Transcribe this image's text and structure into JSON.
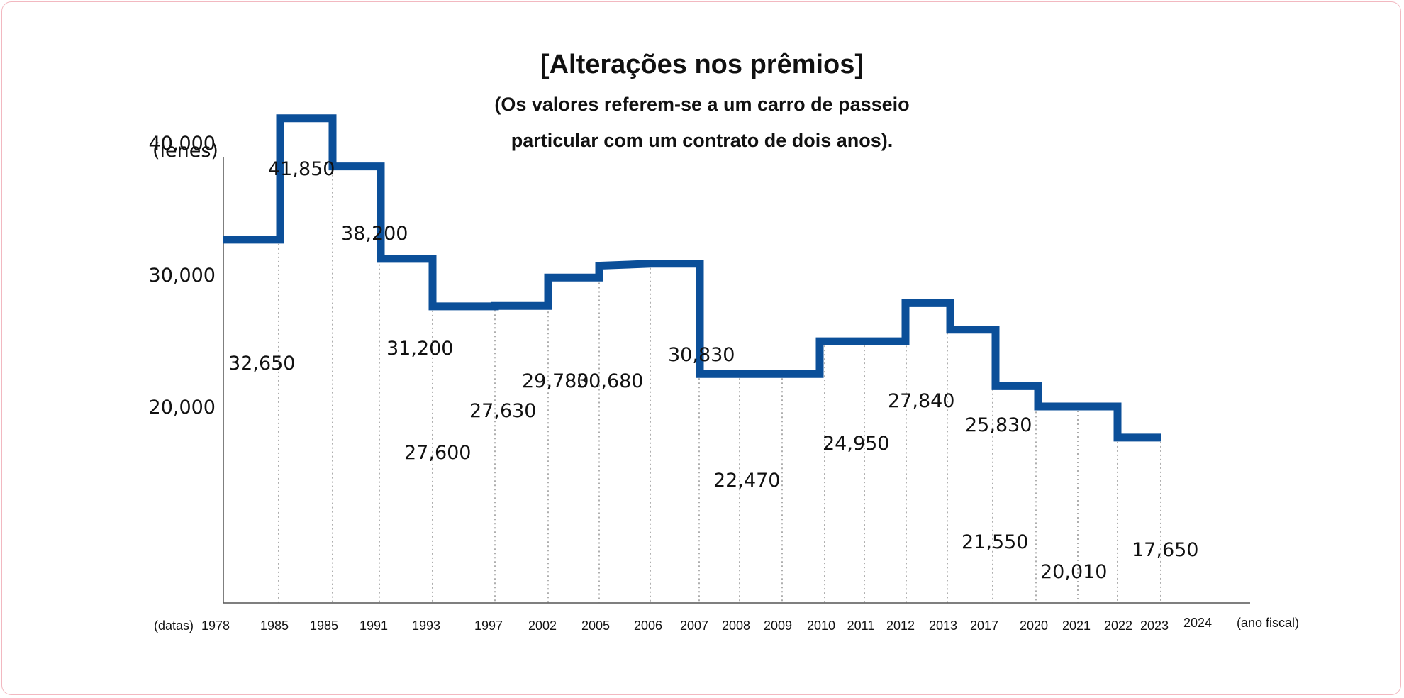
{
  "chart_data": {
    "type": "line",
    "step": true,
    "title": "[Alterações nos prêmios]",
    "subtitle_lines": [
      "(Os valores referem-se a um carro de passeio",
      "particular com um contrato de dois anos)."
    ],
    "ylabel": "(ienes)",
    "xlabel_prefix": "(datas)",
    "xlabel_suffix": "(ano fiscal)",
    "ylim": [
      15000,
      43500
    ],
    "y_ticks": [
      {
        "value": 20000,
        "label": "20,000"
      },
      {
        "value": 30000,
        "label": "30,000"
      },
      {
        "value": 40000,
        "label": "40,000"
      }
    ],
    "x_ticks": [
      "1978",
      "1985",
      "1985",
      "1991",
      "1993",
      "1997",
      "2002",
      "2005",
      "2006",
      "2007",
      "2008",
      "2009",
      "2010",
      "2011",
      "2012",
      "2013",
      "2017",
      "2020",
      "2021",
      "2022",
      "2023",
      "2024"
    ],
    "series": [
      {
        "color": "#0b4f99",
        "points": [
          {
            "x": "1978",
            "y": 32650,
            "label": "32,650"
          },
          {
            "x": "1985",
            "y": 41850,
            "label": "41,850"
          },
          {
            "x": "1985",
            "y": 38200,
            "label": "38,200"
          },
          {
            "x": "1991",
            "y": 31200,
            "label": "31,200"
          },
          {
            "x": "1993",
            "y": 27600,
            "label": "27,600"
          },
          {
            "x": "1997",
            "y": 27630,
            "label": "27,630"
          },
          {
            "x": "2002",
            "y": 29780,
            "label": "29,780"
          },
          {
            "x": "2005",
            "y": 30680,
            "label": "30,680"
          },
          {
            "x": "2006",
            "y": 30830,
            "label": "30,830"
          },
          {
            "x": "2007",
            "y": 22470,
            "label": "22,470"
          },
          {
            "x": "2010",
            "y": 24950,
            "label": "24,950"
          },
          {
            "x": "2012",
            "y": 27840,
            "label": "27,840"
          },
          {
            "x": "2013",
            "y": 25830,
            "label": "25,830"
          },
          {
            "x": "2017",
            "y": 21550,
            "label": "21,550"
          },
          {
            "x": "2020",
            "y": 20010,
            "label": "20,010"
          },
          {
            "x": "2022",
            "y": 17650,
            "label": "17,650"
          },
          {
            "x": "2023",
            "y": 17650
          }
        ]
      }
    ]
  }
}
